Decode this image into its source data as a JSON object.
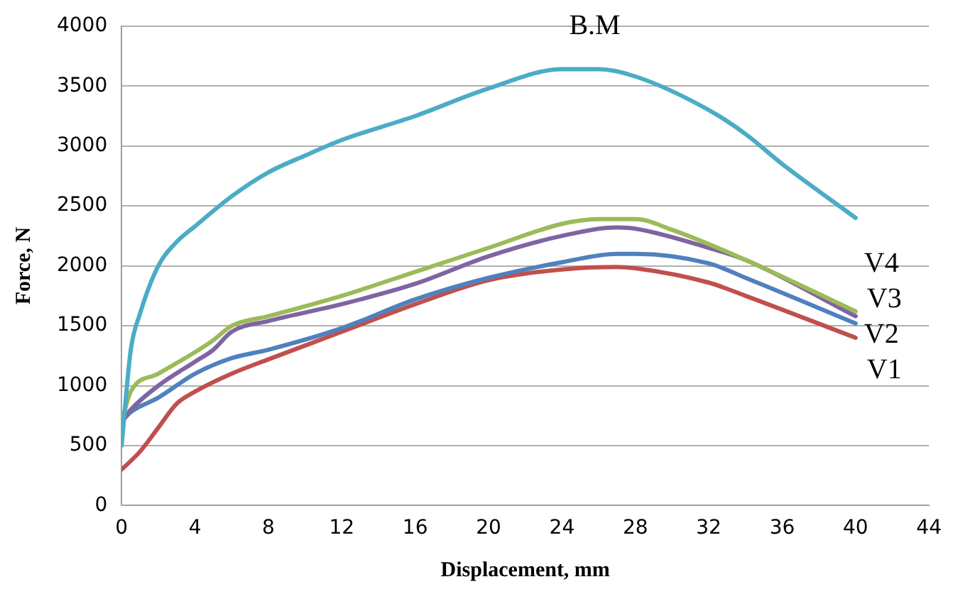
{
  "chart_data": {
    "type": "line",
    "xlabel": "Displacement, mm",
    "ylabel": "Force, N",
    "xlim": [
      0,
      44
    ],
    "xticks": [
      0,
      4,
      8,
      12,
      16,
      20,
      24,
      28,
      32,
      36,
      40,
      44
    ],
    "ylim": [
      0,
      4000
    ],
    "yticks": [
      0,
      500,
      1000,
      1500,
      2000,
      2500,
      3000,
      3500,
      4000
    ],
    "grid": "y",
    "legend": false,
    "marker": "none",
    "line_style": "solid",
    "series": [
      {
        "name": "B.M",
        "color": "#4bacc6",
        "x": [
          0,
          0.5,
          1,
          2,
          3,
          4,
          6,
          8,
          10,
          12,
          16,
          20,
          24,
          26,
          28,
          32,
          34,
          36,
          40
        ],
        "values": [
          500,
          1300,
          1600,
          2000,
          2200,
          2330,
          2580,
          2780,
          2920,
          3050,
          3250,
          3480,
          3640,
          3640,
          3580,
          3300,
          3100,
          2850,
          2400
        ]
      },
      {
        "name": "V4",
        "color": "#9bbb59",
        "x": [
          0,
          0.5,
          2,
          4,
          5,
          6,
          8,
          12,
          16,
          20,
          24,
          26,
          28,
          30,
          34,
          40
        ],
        "values": [
          700,
          950,
          1100,
          1280,
          1380,
          1500,
          1580,
          1750,
          1950,
          2150,
          2350,
          2390,
          2390,
          2300,
          2050,
          1620
        ]
      },
      {
        "name": "V3",
        "color": "#8064a2",
        "x": [
          0,
          0.5,
          2,
          4,
          5,
          6,
          8,
          12,
          16,
          20,
          24,
          27,
          28,
          32,
          34,
          40
        ],
        "values": [
          700,
          800,
          1000,
          1200,
          1300,
          1450,
          1540,
          1680,
          1850,
          2080,
          2250,
          2320,
          2310,
          2150,
          2050,
          1580
        ]
      },
      {
        "name": "V2",
        "color": "#4f81bd",
        "x": [
          0,
          0.5,
          2,
          4,
          6,
          8,
          12,
          16,
          20,
          24,
          27,
          28,
          32,
          34,
          40
        ],
        "values": [
          700,
          780,
          900,
          1100,
          1230,
          1300,
          1480,
          1720,
          1900,
          2030,
          2100,
          2100,
          2020,
          1900,
          1520
        ]
      },
      {
        "name": "V1",
        "color": "#c0504d",
        "x": [
          0,
          1,
          2,
          3,
          4,
          6,
          8,
          12,
          16,
          20,
          24,
          27,
          28,
          32,
          34,
          40
        ],
        "values": [
          300,
          450,
          650,
          850,
          950,
          1100,
          1220,
          1450,
          1680,
          1880,
          1970,
          1990,
          1980,
          1860,
          1750,
          1400
        ]
      }
    ]
  }
}
